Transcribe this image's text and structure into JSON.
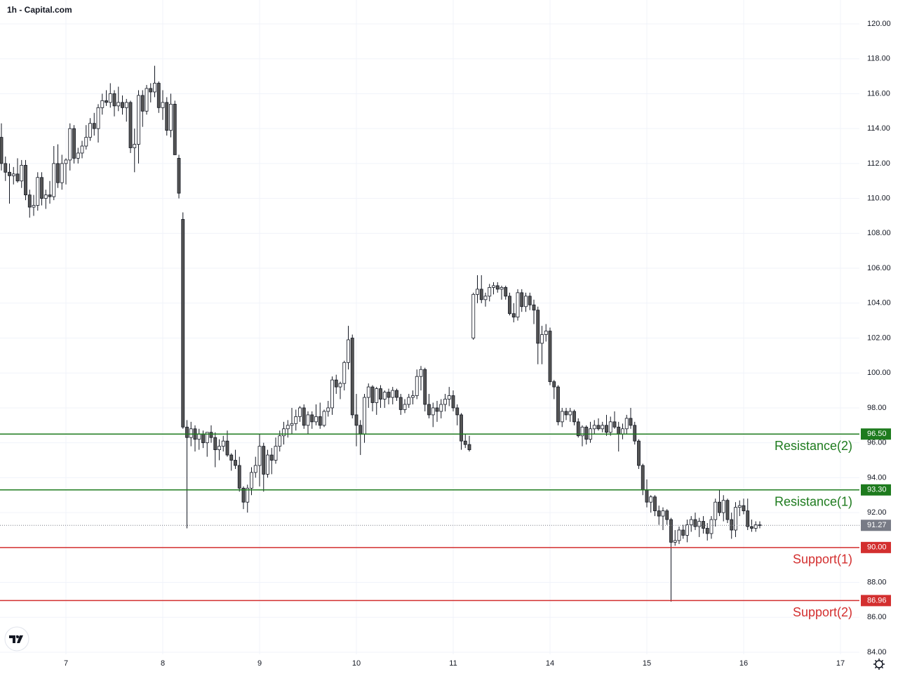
{
  "chart_data": {
    "type": "candlestick",
    "title": "1h - Capital.com",
    "ylim": [
      84,
      120
    ],
    "yticks": [
      {
        "value": 84,
        "label": "84.00"
      },
      {
        "value": 86,
        "label": "86.00"
      },
      {
        "value": 88,
        "label": "88.00"
      },
      {
        "value": 90,
        "label": "90.00"
      },
      {
        "value": 92,
        "label": "92.00"
      },
      {
        "value": 94,
        "label": "94.00"
      },
      {
        "value": 96,
        "label": "96.00"
      },
      {
        "value": 98,
        "label": "98.00"
      },
      {
        "value": 100,
        "label": "100.00"
      },
      {
        "value": 102,
        "label": "102.00"
      },
      {
        "value": 104,
        "label": "104.00"
      },
      {
        "value": 106,
        "label": "106.00"
      },
      {
        "value": 108,
        "label": "108.00"
      },
      {
        "value": 110,
        "label": "110.00"
      },
      {
        "value": 112,
        "label": "112.00"
      },
      {
        "value": 114,
        "label": "114.00"
      },
      {
        "value": 116,
        "label": "116.00"
      },
      {
        "value": 118,
        "label": "118.00"
      },
      {
        "value": 120,
        "label": "120.00"
      }
    ],
    "xlim": [
      -0.35,
      212.7
    ],
    "xticks": [
      {
        "value": 16,
        "label": "7"
      },
      {
        "value": 40,
        "label": "8"
      },
      {
        "value": 64,
        "label": "9"
      },
      {
        "value": 88,
        "label": "10"
      },
      {
        "value": 112,
        "label": "11"
      },
      {
        "value": 136,
        "label": "14"
      },
      {
        "value": 160,
        "label": "15"
      },
      {
        "value": 184,
        "label": "16"
      },
      {
        "value": 208,
        "label": "17"
      }
    ],
    "grid": true,
    "up_color": "#ffffff",
    "down_color": "#555555",
    "levels": [
      {
        "name": "Resistance(2)",
        "value": 96.5,
        "value_label": "96.50",
        "color": "#1e7b1e"
      },
      {
        "name": "Resistance(1)",
        "value": 93.3,
        "value_label": "93.30",
        "color": "#1e7b1e"
      },
      {
        "name": "Support(1)",
        "value": 90.0,
        "value_label": "90.00",
        "color": "#d32f2f"
      },
      {
        "name": "Support(2)",
        "value": 86.96,
        "value_label": "86.96",
        "color": "#d32f2f"
      }
    ],
    "last_price": {
      "value": 91.27,
      "label": "91.27",
      "color": "#787b86"
    },
    "candles": [
      [
        113.5,
        114.3,
        111.6,
        112.0
      ],
      [
        112.0,
        112.4,
        111.0,
        111.5
      ],
      [
        111.5,
        112.0,
        109.7,
        111.3
      ],
      [
        111.3,
        111.8,
        110.8,
        111.4
      ],
      [
        111.4,
        112.3,
        110.9,
        111.0
      ],
      [
        111.0,
        112.2,
        110.6,
        111.9
      ],
      [
        111.9,
        112.2,
        109.9,
        110.2
      ],
      [
        110.2,
        110.5,
        108.9,
        109.5
      ],
      [
        109.5,
        110.2,
        109.0,
        109.6
      ],
      [
        109.6,
        111.5,
        109.3,
        111.2
      ],
      [
        111.2,
        111.5,
        109.6,
        110.0
      ],
      [
        110.0,
        110.5,
        109.4,
        110.2
      ],
      [
        110.2,
        111.0,
        109.7,
        110.1
      ],
      [
        110.1,
        113.0,
        109.9,
        112.0
      ],
      [
        112.0,
        113.1,
        110.6,
        110.9
      ],
      [
        110.9,
        112.5,
        110.5,
        112.0
      ],
      [
        112.0,
        112.3,
        110.8,
        112.2
      ],
      [
        112.2,
        114.3,
        111.6,
        114.0
      ],
      [
        114.0,
        114.2,
        112.0,
        112.3
      ],
      [
        112.3,
        112.9,
        112.0,
        112.6
      ],
      [
        112.6,
        113.3,
        112.3,
        113.0
      ],
      [
        113.0,
        114.2,
        112.8,
        113.5
      ],
      [
        113.5,
        114.6,
        113.3,
        114.3
      ],
      [
        114.3,
        114.9,
        113.6,
        114.0
      ],
      [
        114.0,
        115.4,
        113.2,
        115.2
      ],
      [
        115.2,
        116.0,
        114.8,
        115.6
      ],
      [
        115.6,
        116.2,
        115.3,
        115.5
      ],
      [
        115.5,
        116.6,
        115.2,
        116.0
      ],
      [
        116.0,
        116.2,
        114.7,
        115.3
      ],
      [
        115.3,
        116.4,
        115.0,
        115.5
      ],
      [
        115.5,
        115.9,
        114.8,
        115.2
      ],
      [
        115.2,
        115.7,
        114.4,
        115.5
      ],
      [
        115.5,
        115.6,
        112.6,
        112.9
      ],
      [
        112.9,
        114.0,
        111.5,
        113.1
      ],
      [
        113.1,
        116.2,
        112.0,
        115.9
      ],
      [
        115.9,
        116.2,
        114.1,
        115.0
      ],
      [
        115.0,
        116.5,
        114.8,
        116.3
      ],
      [
        116.3,
        116.6,
        115.5,
        116.1
      ],
      [
        116.1,
        117.6,
        115.8,
        116.6
      ],
      [
        116.6,
        116.7,
        114.9,
        115.2
      ],
      [
        115.2,
        116.2,
        114.5,
        115.5
      ],
      [
        115.5,
        115.8,
        113.6,
        113.9
      ],
      [
        113.9,
        116.0,
        113.5,
        115.4
      ],
      [
        115.4,
        115.6,
        112.5,
        112.5
      ],
      [
        112.3,
        112.5,
        110.0,
        110.3
      ],
      [
        108.8,
        109.2,
        96.8,
        96.9
      ],
      [
        96.9,
        97.3,
        91.1,
        96.3
      ],
      [
        96.3,
        97.2,
        95.8,
        96.8
      ],
      [
        96.8,
        97.0,
        95.5,
        96.2
      ],
      [
        96.2,
        96.8,
        95.6,
        96.5
      ],
      [
        96.5,
        96.7,
        95.7,
        96.0
      ],
      [
        96.0,
        96.5,
        95.2,
        96.6
      ],
      [
        96.6,
        97.0,
        96.0,
        96.3
      ],
      [
        96.3,
        96.6,
        94.6,
        95.6
      ],
      [
        95.6,
        96.2,
        95.0,
        95.8
      ],
      [
        95.8,
        96.4,
        95.5,
        96.1
      ],
      [
        96.1,
        96.7,
        95.2,
        95.3
      ],
      [
        95.3,
        95.4,
        94.4,
        95.0
      ],
      [
        95.0,
        95.6,
        94.5,
        94.7
      ],
      [
        94.7,
        95.2,
        93.2,
        93.4
      ],
      [
        93.4,
        93.5,
        92.2,
        92.6
      ],
      [
        92.6,
        93.6,
        92.0,
        93.4
      ],
      [
        93.4,
        94.6,
        93.0,
        94.3
      ],
      [
        94.3,
        95.2,
        94.0,
        94.7
      ],
      [
        94.7,
        96.5,
        93.5,
        95.8
      ],
      [
        95.8,
        96.0,
        93.2,
        94.2
      ],
      [
        94.2,
        95.6,
        94.0,
        95.3
      ],
      [
        95.3,
        95.7,
        94.2,
        95.0
      ],
      [
        95.0,
        96.3,
        94.8,
        95.8
      ],
      [
        95.8,
        96.7,
        95.5,
        96.4
      ],
      [
        96.4,
        97.2,
        95.9,
        96.8
      ],
      [
        96.8,
        97.3,
        96.3,
        97.0
      ],
      [
        97.0,
        98.0,
        96.5,
        97.1
      ],
      [
        97.1,
        97.9,
        96.7,
        97.5
      ],
      [
        97.5,
        98.1,
        97.2,
        98.0
      ],
      [
        98.0,
        98.2,
        96.8,
        97.0
      ],
      [
        97.0,
        97.8,
        96.5,
        97.6
      ],
      [
        97.6,
        97.8,
        96.8,
        97.2
      ],
      [
        97.2,
        98.2,
        97.0,
        97.5
      ],
      [
        97.5,
        98.3,
        96.8,
        97.0
      ],
      [
        97.0,
        97.9,
        96.9,
        97.8
      ],
      [
        97.8,
        98.4,
        97.5,
        98.0
      ],
      [
        98.0,
        99.8,
        97.6,
        99.6
      ],
      [
        99.6,
        99.9,
        98.8,
        99.2
      ],
      [
        99.2,
        99.5,
        98.5,
        99.4
      ],
      [
        99.4,
        100.7,
        99.0,
        100.6
      ],
      [
        100.6,
        102.7,
        100.2,
        101.9
      ],
      [
        102.0,
        102.2,
        97.4,
        97.6
      ],
      [
        97.6,
        98.8,
        95.8,
        97.0
      ],
      [
        97.0,
        97.3,
        95.3,
        96.5
      ],
      [
        96.5,
        98.8,
        96.0,
        98.6
      ],
      [
        98.6,
        99.4,
        98.0,
        99.2
      ],
      [
        99.2,
        99.3,
        97.8,
        98.3
      ],
      [
        98.3,
        99.2,
        97.6,
        99.1
      ],
      [
        99.1,
        99.3,
        98.0,
        98.5
      ],
      [
        98.5,
        99.0,
        98.0,
        98.9
      ],
      [
        98.9,
        99.1,
        98.2,
        98.6
      ],
      [
        98.6,
        99.2,
        98.2,
        99.0
      ],
      [
        99.0,
        99.1,
        98.4,
        98.6
      ],
      [
        98.6,
        98.8,
        97.6,
        97.9
      ],
      [
        97.9,
        98.5,
        97.7,
        98.2
      ],
      [
        98.2,
        98.8,
        98.0,
        98.6
      ],
      [
        98.6,
        99.0,
        98.2,
        98.7
      ],
      [
        98.7,
        100.2,
        98.5,
        99.8
      ],
      [
        99.8,
        100.4,
        99.0,
        100.2
      ],
      [
        100.2,
        100.3,
        97.8,
        98.2
      ],
      [
        98.2,
        98.8,
        97.4,
        97.6
      ],
      [
        97.6,
        98.3,
        96.9,
        98.0
      ],
      [
        98.0,
        98.4,
        97.2,
        97.8
      ],
      [
        97.8,
        98.5,
        97.4,
        98.2
      ],
      [
        98.2,
        98.8,
        97.8,
        98.5
      ],
      [
        98.5,
        99.2,
        98.1,
        98.7
      ],
      [
        98.7,
        99.0,
        97.8,
        98.0
      ],
      [
        98.0,
        98.2,
        97.0,
        97.6
      ],
      [
        97.6,
        97.7,
        95.6,
        96.1
      ],
      [
        96.1,
        96.5,
        95.7,
        95.9
      ],
      [
        95.9,
        96.4,
        95.5,
        95.6
      ],
      [
        102.0,
        104.6,
        101.9,
        104.5
      ],
      [
        104.5,
        105.6,
        104.0,
        104.8
      ],
      [
        104.8,
        105.6,
        104.0,
        104.2
      ],
      [
        104.2,
        104.6,
        103.8,
        104.4
      ],
      [
        104.4,
        105.1,
        104.1,
        104.9
      ],
      [
        104.9,
        105.2,
        104.5,
        105.0
      ],
      [
        105.0,
        105.2,
        104.6,
        104.8
      ],
      [
        104.8,
        105.0,
        104.2,
        104.9
      ],
      [
        104.9,
        105.0,
        104.2,
        104.4
      ],
      [
        104.4,
        104.6,
        103.3,
        103.4
      ],
      [
        103.4,
        104.0,
        102.9,
        103.2
      ],
      [
        103.2,
        104.8,
        103.0,
        104.6
      ],
      [
        104.6,
        104.8,
        103.5,
        103.8
      ],
      [
        103.8,
        104.6,
        103.5,
        104.4
      ],
      [
        104.4,
        104.6,
        103.6,
        103.9
      ],
      [
        103.9,
        104.2,
        102.8,
        103.6
      ],
      [
        103.6,
        103.8,
        100.5,
        101.7
      ],
      [
        101.7,
        102.7,
        100.5,
        102.2
      ],
      [
        102.2,
        102.8,
        101.8,
        102.4
      ],
      [
        102.4,
        102.6,
        99.3,
        99.5
      ],
      [
        99.5,
        99.6,
        98.5,
        99.2
      ],
      [
        99.2,
        99.3,
        97.0,
        97.2
      ],
      [
        97.2,
        98.0,
        96.9,
        97.8
      ],
      [
        97.8,
        98.0,
        97.3,
        97.6
      ],
      [
        97.6,
        98.0,
        97.2,
        97.8
      ],
      [
        97.8,
        97.9,
        97.0,
        97.2
      ],
      [
        97.2,
        97.4,
        96.3,
        96.4
      ],
      [
        96.4,
        97.0,
        95.8,
        96.9
      ],
      [
        96.9,
        97.0,
        95.9,
        96.2
      ],
      [
        96.2,
        97.2,
        96.0,
        96.8
      ],
      [
        96.8,
        97.3,
        96.5,
        97.0
      ],
      [
        97.0,
        97.4,
        96.7,
        96.8
      ],
      [
        96.8,
        97.2,
        96.6,
        97.0
      ],
      [
        97.0,
        97.6,
        96.4,
        96.6
      ],
      [
        96.6,
        97.5,
        96.4,
        97.2
      ],
      [
        97.2,
        97.8,
        96.8,
        96.9
      ],
      [
        96.9,
        97.2,
        95.5,
        96.5
      ],
      [
        96.5,
        97.1,
        96.2,
        96.8
      ],
      [
        96.8,
        97.6,
        96.5,
        97.4
      ],
      [
        97.4,
        98.0,
        96.8,
        97.0
      ],
      [
        97.0,
        97.2,
        95.9,
        96.1
      ],
      [
        96.1,
        96.2,
        94.5,
        94.7
      ],
      [
        94.7,
        94.8,
        93.0,
        93.3
      ],
      [
        93.3,
        93.9,
        92.3,
        92.6
      ],
      [
        92.6,
        93.0,
        92.0,
        92.9
      ],
      [
        92.9,
        93.0,
        91.8,
        92.1
      ],
      [
        92.1,
        92.4,
        91.3,
        91.8
      ],
      [
        91.8,
        92.3,
        91.0,
        92.1
      ],
      [
        92.1,
        92.2,
        91.3,
        91.6
      ],
      [
        91.6,
        91.7,
        86.9,
        90.3
      ],
      [
        90.3,
        91.0,
        90.1,
        90.4
      ],
      [
        90.4,
        91.2,
        90.2,
        91.0
      ],
      [
        91.0,
        91.3,
        90.5,
        90.7
      ],
      [
        90.7,
        91.6,
        90.3,
        91.3
      ],
      [
        91.3,
        91.8,
        90.9,
        91.6
      ],
      [
        91.6,
        92.0,
        91.0,
        91.2
      ],
      [
        91.2,
        91.7,
        90.6,
        91.5
      ],
      [
        91.5,
        91.8,
        90.8,
        91.1
      ],
      [
        91.1,
        91.4,
        90.4,
        90.8
      ],
      [
        90.8,
        91.8,
        90.5,
        91.6
      ],
      [
        91.6,
        92.8,
        91.2,
        92.6
      ],
      [
        92.6,
        93.3,
        91.8,
        92.0
      ],
      [
        92.0,
        93.0,
        91.5,
        92.7
      ],
      [
        92.7,
        92.8,
        91.4,
        91.6
      ],
      [
        91.6,
        92.0,
        90.5,
        91.0
      ],
      [
        91.0,
        92.6,
        90.6,
        92.3
      ],
      [
        92.3,
        92.7,
        91.8,
        92.4
      ],
      [
        92.4,
        92.8,
        91.9,
        92.1
      ],
      [
        92.1,
        92.8,
        91.0,
        91.2
      ],
      [
        91.2,
        91.6,
        90.9,
        91.1
      ],
      [
        91.1,
        91.5,
        90.9,
        91.3
      ],
      [
        91.3,
        91.5,
        91.1,
        91.27
      ]
    ]
  }
}
